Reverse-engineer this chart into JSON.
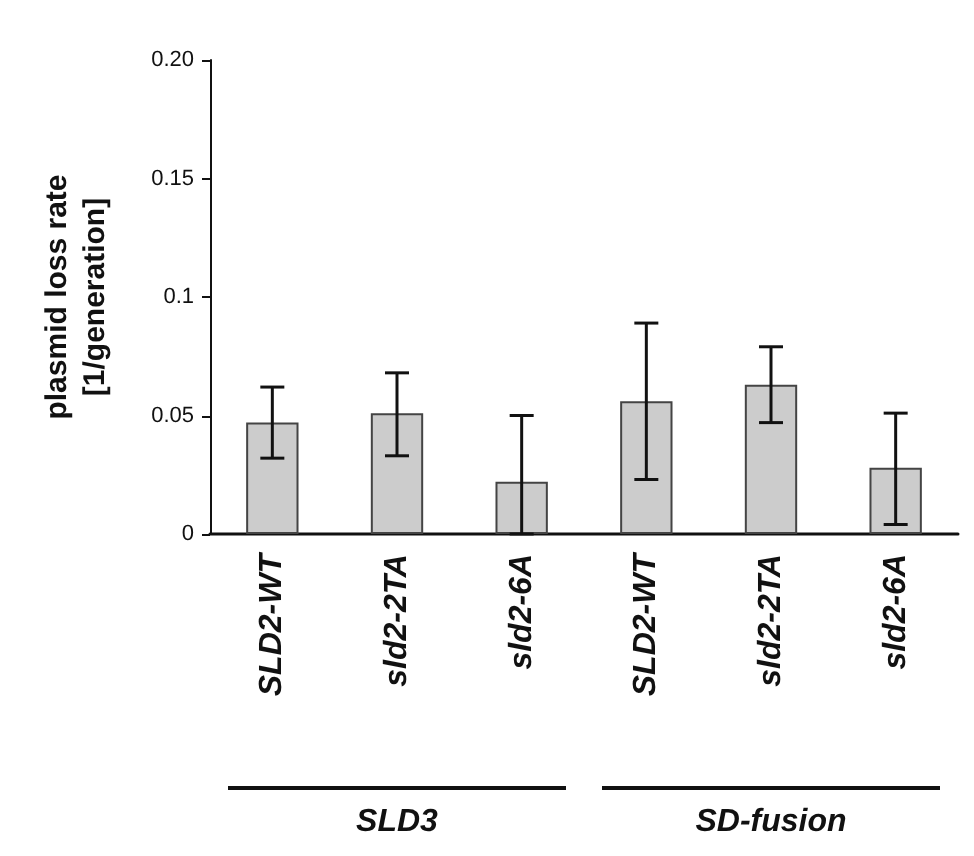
{
  "chart_data": {
    "type": "bar",
    "ylabel": "plasmid loss rate\n[1/generation]",
    "categories": [
      "SLD2-WT",
      "sld2-2TA",
      "sld2-6A",
      "SLD2-WT",
      "sld2-2TA",
      "sld2-6A"
    ],
    "values": [
      0.047,
      0.051,
      0.022,
      0.056,
      0.063,
      0.028
    ],
    "errors": [
      [
        0.032,
        0.062
      ],
      [
        0.033,
        0.068
      ],
      [
        0,
        0.05
      ],
      [
        0.023,
        0.089
      ],
      [
        0.047,
        0.079
      ],
      [
        0.004,
        0.051
      ]
    ],
    "color": "#cccccc",
    "ylim": [
      0,
      0.2
    ],
    "yticks": [
      0,
      0.05,
      0.1,
      0.15,
      {
        "value": 0.2,
        "label": "0.20"
      }
    ],
    "annotations": [
      "SLD3",
      "SD-fusion"
    ]
  }
}
